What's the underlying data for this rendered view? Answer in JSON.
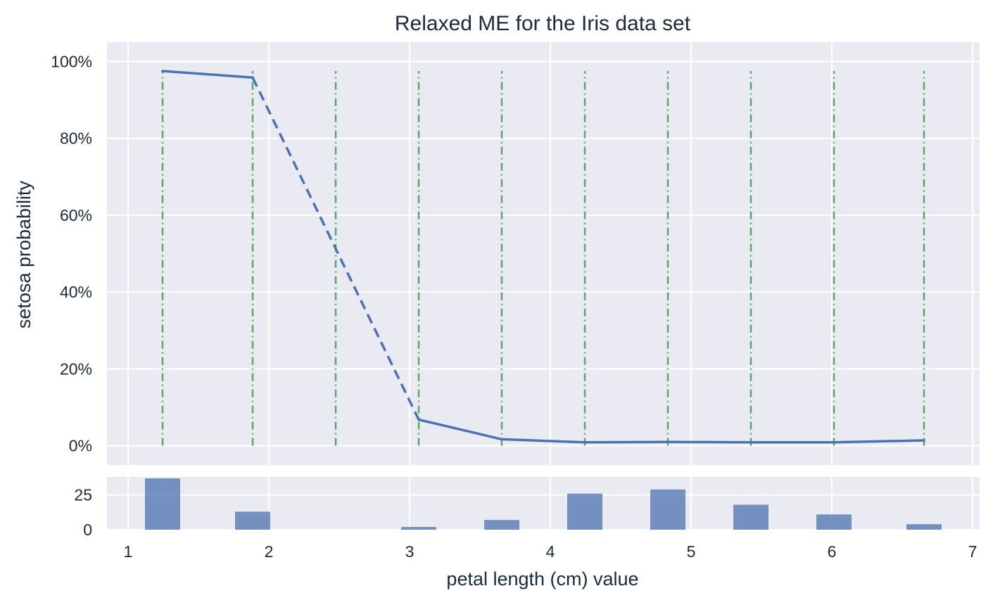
{
  "chart_data": [
    {
      "type": "line",
      "title": "Relaxed ME for the Iris data set",
      "ylabel": "setosa probability",
      "xlim": [
        0.85,
        7.05
      ],
      "ylim": [
        -0.05,
        1.05
      ],
      "yticks": [
        0,
        0.2,
        0.4,
        0.6,
        0.8,
        1.0
      ],
      "ytick_labels": [
        "0%",
        "20%",
        "40%",
        "60%",
        "80%",
        "100%"
      ],
      "grid": true,
      "x": [
        1.245,
        1.885,
        3.065,
        3.655,
        4.245,
        4.835,
        5.425,
        6.015,
        6.655
      ],
      "y": [
        0.975,
        0.958,
        0.068,
        0.017,
        0.009,
        0.01,
        0.009,
        0.009,
        0.014
      ],
      "line_color": "#4c72b0",
      "dashed_segments": [
        [
          1.885,
          3.065
        ]
      ],
      "vlines": {
        "x": [
          1.245,
          1.885,
          2.475,
          3.065,
          3.655,
          4.245,
          4.835,
          5.425,
          6.015,
          6.655
        ],
        "color": "#55a868",
        "style": "dashdot"
      }
    },
    {
      "type": "bar",
      "xlabel": "petal length (cm) value",
      "xlim": [
        0.85,
        7.05
      ],
      "xticks": [
        1,
        2,
        3,
        4,
        5,
        6,
        7
      ],
      "ylim": [
        0,
        38
      ],
      "yticks": [
        0,
        25
      ],
      "grid": true,
      "bar_width": 0.25,
      "x": [
        1.245,
        1.885,
        3.065,
        3.655,
        4.245,
        4.835,
        5.425,
        6.015,
        6.655
      ],
      "values": [
        37,
        13,
        2,
        7,
        26,
        29,
        18,
        11,
        4
      ],
      "color": "#4c72b0"
    }
  ],
  "colors": {
    "panel_bg": "#eaeaf2",
    "grid": "#ffffff",
    "text": "#1a2b3a"
  }
}
